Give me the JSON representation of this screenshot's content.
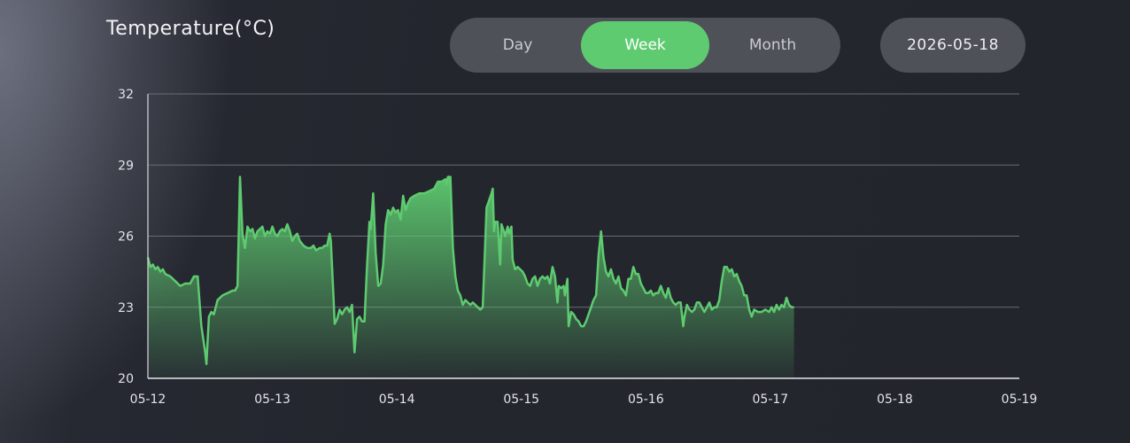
{
  "title": "Temperature(°C)",
  "tabs": [
    {
      "label": "Day",
      "active": false
    },
    {
      "label": "Week",
      "active": true
    },
    {
      "label": "Month",
      "active": false
    }
  ],
  "date": "2026-05-18",
  "colors": {
    "accent": "#5ecb70",
    "grid": "#6b6d75",
    "pill": "#4f5158"
  },
  "chart_data": {
    "type": "area",
    "ylim": [
      20,
      32
    ],
    "yticks": [
      20,
      23,
      26,
      29,
      32
    ],
    "xticks": [
      "05-12",
      "05-13",
      "05-14",
      "05-15",
      "05-16",
      "05-17",
      "05-18",
      "05-19"
    ],
    "xrange_days": [
      0,
      7
    ],
    "grid": true,
    "series": [
      {
        "color": "#5ecb70",
        "points": [
          [
            0.0,
            25.1
          ],
          [
            0.02,
            24.7
          ],
          [
            0.04,
            24.8
          ],
          [
            0.06,
            24.6
          ],
          [
            0.08,
            24.7
          ],
          [
            0.1,
            24.5
          ],
          [
            0.12,
            24.6
          ],
          [
            0.14,
            24.4
          ],
          [
            0.18,
            24.3
          ],
          [
            0.22,
            24.1
          ],
          [
            0.26,
            23.9
          ],
          [
            0.3,
            24.0
          ],
          [
            0.34,
            24.0
          ],
          [
            0.37,
            24.3
          ],
          [
            0.4,
            24.3
          ],
          [
            0.43,
            22.2
          ],
          [
            0.46,
            21.1
          ],
          [
            0.47,
            20.6
          ],
          [
            0.49,
            22.6
          ],
          [
            0.51,
            22.8
          ],
          [
            0.53,
            22.7
          ],
          [
            0.56,
            23.3
          ],
          [
            0.6,
            23.5
          ],
          [
            0.64,
            23.6
          ],
          [
            0.68,
            23.7
          ],
          [
            0.7,
            23.7
          ],
          [
            0.72,
            23.9
          ],
          [
            0.74,
            28.5
          ],
          [
            0.76,
            26.1
          ],
          [
            0.78,
            25.5
          ],
          [
            0.8,
            26.4
          ],
          [
            0.82,
            26.2
          ],
          [
            0.84,
            26.3
          ],
          [
            0.86,
            25.9
          ],
          [
            0.88,
            26.2
          ],
          [
            0.9,
            26.3
          ],
          [
            0.92,
            26.4
          ],
          [
            0.94,
            26.0
          ],
          [
            0.96,
            26.2
          ],
          [
            0.98,
            26.1
          ],
          [
            1.0,
            26.4
          ],
          [
            1.02,
            26.1
          ],
          [
            1.04,
            26.0
          ],
          [
            1.06,
            26.2
          ],
          [
            1.08,
            26.3
          ],
          [
            1.1,
            26.2
          ],
          [
            1.12,
            26.5
          ],
          [
            1.14,
            26.2
          ],
          [
            1.16,
            25.8
          ],
          [
            1.18,
            26.0
          ],
          [
            1.2,
            26.1
          ],
          [
            1.22,
            25.8
          ],
          [
            1.25,
            25.6
          ],
          [
            1.28,
            25.5
          ],
          [
            1.31,
            25.5
          ],
          [
            1.33,
            25.6
          ],
          [
            1.35,
            25.4
          ],
          [
            1.38,
            25.5
          ],
          [
            1.4,
            25.5
          ],
          [
            1.42,
            25.6
          ],
          [
            1.44,
            25.6
          ],
          [
            1.46,
            26.1
          ],
          [
            1.47,
            25.8
          ],
          [
            1.49,
            23.5
          ],
          [
            1.5,
            22.3
          ],
          [
            1.52,
            22.5
          ],
          [
            1.54,
            22.9
          ],
          [
            1.56,
            22.7
          ],
          [
            1.58,
            22.9
          ],
          [
            1.6,
            23.0
          ],
          [
            1.62,
            22.8
          ],
          [
            1.64,
            23.1
          ],
          [
            1.66,
            21.1
          ],
          [
            1.68,
            22.5
          ],
          [
            1.7,
            22.6
          ],
          [
            1.72,
            22.4
          ],
          [
            1.74,
            22.4
          ],
          [
            1.76,
            24.7
          ],
          [
            1.78,
            26.6
          ],
          [
            1.79,
            26.3
          ],
          [
            1.81,
            27.8
          ],
          [
            1.83,
            25.3
          ],
          [
            1.85,
            23.9
          ],
          [
            1.87,
            24.0
          ],
          [
            1.89,
            24.8
          ],
          [
            1.91,
            26.5
          ],
          [
            1.93,
            27.1
          ],
          [
            1.95,
            26.9
          ],
          [
            1.97,
            27.2
          ],
          [
            1.99,
            27.0
          ],
          [
            2.01,
            27.1
          ],
          [
            2.03,
            26.7
          ],
          [
            2.05,
            27.7
          ],
          [
            2.07,
            27.1
          ],
          [
            2.09,
            27.4
          ],
          [
            2.11,
            27.6
          ],
          [
            2.14,
            27.7
          ],
          [
            2.18,
            27.8
          ],
          [
            2.22,
            27.8
          ],
          [
            2.26,
            27.9
          ],
          [
            2.3,
            28.0
          ],
          [
            2.33,
            28.3
          ],
          [
            2.36,
            28.3
          ],
          [
            2.39,
            28.4
          ],
          [
            2.4,
            28.2
          ],
          [
            2.41,
            28.5
          ],
          [
            2.43,
            28.5
          ],
          [
            2.45,
            25.5
          ],
          [
            2.47,
            24.3
          ],
          [
            2.49,
            23.7
          ],
          [
            2.51,
            23.5
          ],
          [
            2.53,
            23.1
          ],
          [
            2.55,
            23.3
          ],
          [
            2.57,
            23.2
          ],
          [
            2.59,
            23.1
          ],
          [
            2.61,
            23.2
          ],
          [
            2.63,
            23.1
          ],
          [
            2.65,
            23.0
          ],
          [
            2.67,
            22.9
          ],
          [
            2.69,
            23.0
          ],
          [
            2.71,
            25.7
          ],
          [
            2.72,
            27.2
          ],
          [
            2.74,
            27.5
          ],
          [
            2.76,
            27.8
          ],
          [
            2.77,
            28.0
          ],
          [
            2.78,
            26.2
          ],
          [
            2.79,
            26.6
          ],
          [
            2.81,
            26.6
          ],
          [
            2.83,
            24.8
          ],
          [
            2.84,
            26.5
          ],
          [
            2.86,
            26.2
          ],
          [
            2.87,
            26.0
          ],
          [
            2.89,
            26.4
          ],
          [
            2.9,
            26.1
          ],
          [
            2.92,
            26.4
          ],
          [
            2.93,
            25.0
          ],
          [
            2.95,
            24.6
          ],
          [
            2.97,
            24.7
          ],
          [
            2.99,
            24.6
          ],
          [
            3.01,
            24.5
          ],
          [
            3.03,
            24.3
          ],
          [
            3.05,
            24.0
          ],
          [
            3.07,
            23.9
          ],
          [
            3.09,
            24.2
          ],
          [
            3.11,
            24.3
          ],
          [
            3.13,
            23.9
          ],
          [
            3.15,
            24.2
          ],
          [
            3.17,
            24.3
          ],
          [
            3.19,
            24.2
          ],
          [
            3.21,
            24.3
          ],
          [
            3.23,
            24.0
          ],
          [
            3.25,
            24.7
          ],
          [
            3.27,
            24.3
          ],
          [
            3.29,
            23.2
          ],
          [
            3.3,
            23.9
          ],
          [
            3.32,
            23.8
          ],
          [
            3.34,
            23.9
          ],
          [
            3.35,
            23.5
          ],
          [
            3.37,
            24.2
          ],
          [
            3.38,
            22.2
          ],
          [
            3.4,
            22.8
          ],
          [
            3.42,
            22.7
          ],
          [
            3.44,
            22.5
          ],
          [
            3.46,
            22.4
          ],
          [
            3.48,
            22.2
          ],
          [
            3.5,
            22.2
          ],
          [
            3.52,
            22.4
          ],
          [
            3.54,
            22.7
          ],
          [
            3.56,
            23.0
          ],
          [
            3.58,
            23.3
          ],
          [
            3.6,
            23.5
          ],
          [
            3.62,
            25.2
          ],
          [
            3.64,
            26.2
          ],
          [
            3.66,
            25.1
          ],
          [
            3.68,
            24.5
          ],
          [
            3.7,
            24.3
          ],
          [
            3.72,
            24.6
          ],
          [
            3.74,
            24.2
          ],
          [
            3.76,
            24.0
          ],
          [
            3.78,
            24.3
          ],
          [
            3.8,
            23.8
          ],
          [
            3.82,
            23.7
          ],
          [
            3.84,
            23.5
          ],
          [
            3.86,
            24.2
          ],
          [
            3.88,
            24.2
          ],
          [
            3.9,
            24.7
          ],
          [
            3.92,
            24.4
          ],
          [
            3.94,
            24.4
          ],
          [
            3.96,
            24.0
          ],
          [
            3.98,
            23.8
          ],
          [
            4.0,
            23.6
          ],
          [
            4.02,
            23.6
          ],
          [
            4.04,
            23.7
          ],
          [
            4.06,
            23.5
          ],
          [
            4.08,
            23.6
          ],
          [
            4.1,
            23.6
          ],
          [
            4.12,
            23.9
          ],
          [
            4.14,
            23.6
          ],
          [
            4.16,
            23.4
          ],
          [
            4.18,
            23.8
          ],
          [
            4.2,
            23.4
          ],
          [
            4.22,
            23.2
          ],
          [
            4.24,
            23.1
          ],
          [
            4.26,
            23.2
          ],
          [
            4.28,
            23.2
          ],
          [
            4.3,
            22.2
          ],
          [
            4.31,
            22.6
          ],
          [
            4.33,
            23.1
          ],
          [
            4.35,
            22.9
          ],
          [
            4.37,
            22.8
          ],
          [
            4.39,
            22.9
          ],
          [
            4.41,
            23.2
          ],
          [
            4.43,
            23.2
          ],
          [
            4.45,
            23.0
          ],
          [
            4.47,
            22.8
          ],
          [
            4.49,
            23.0
          ],
          [
            4.51,
            23.2
          ],
          [
            4.53,
            22.9
          ],
          [
            4.55,
            23.0
          ],
          [
            4.57,
            23.0
          ],
          [
            4.59,
            23.3
          ],
          [
            4.61,
            24.1
          ],
          [
            4.63,
            24.7
          ],
          [
            4.65,
            24.7
          ],
          [
            4.67,
            24.5
          ],
          [
            4.69,
            24.6
          ],
          [
            4.71,
            24.3
          ],
          [
            4.73,
            24.4
          ],
          [
            4.75,
            24.1
          ],
          [
            4.77,
            23.9
          ],
          [
            4.79,
            23.5
          ],
          [
            4.81,
            23.5
          ],
          [
            4.83,
            22.9
          ],
          [
            4.85,
            22.6
          ],
          [
            4.87,
            22.9
          ],
          [
            4.9,
            22.8
          ],
          [
            4.93,
            22.8
          ],
          [
            4.96,
            22.9
          ],
          [
            4.99,
            22.8
          ],
          [
            5.01,
            23.0
          ],
          [
            5.03,
            22.8
          ],
          [
            5.05,
            23.1
          ],
          [
            5.07,
            22.9
          ],
          [
            5.09,
            23.1
          ],
          [
            5.11,
            23.0
          ],
          [
            5.13,
            23.4
          ],
          [
            5.15,
            23.1
          ],
          [
            5.17,
            23.0
          ],
          [
            5.19,
            23.0
          ]
        ]
      }
    ]
  }
}
